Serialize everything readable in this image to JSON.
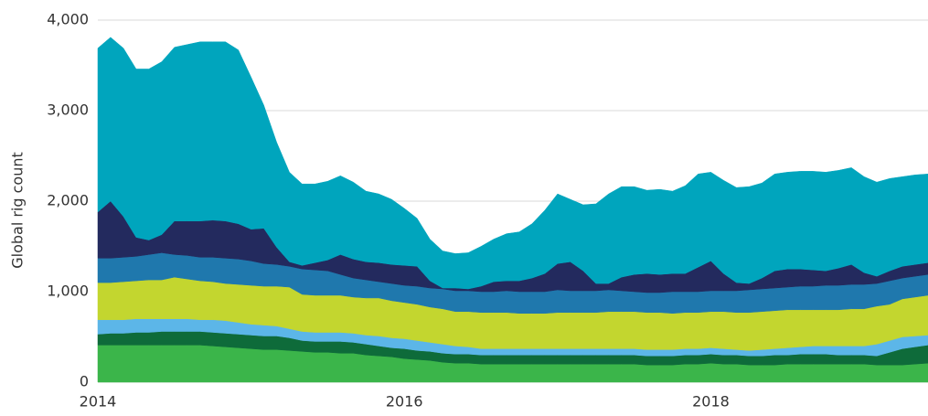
{
  "chart_data": {
    "type": "stacked_area",
    "y_label": "Global rig count",
    "x": [
      2014,
      2014.083,
      2014.167,
      2014.25,
      2014.333,
      2014.417,
      2014.5,
      2014.583,
      2014.667,
      2014.75,
      2014.833,
      2014.917,
      2015,
      2015.083,
      2015.167,
      2015.25,
      2015.333,
      2015.417,
      2015.5,
      2015.583,
      2015.667,
      2015.75,
      2015.833,
      2015.917,
      2016,
      2016.083,
      2016.167,
      2016.25,
      2016.333,
      2016.417,
      2016.5,
      2016.583,
      2016.667,
      2016.75,
      2016.833,
      2016.917,
      2017,
      2017.083,
      2017.167,
      2017.25,
      2017.333,
      2017.417,
      2017.5,
      2017.583,
      2017.667,
      2017.75,
      2017.833,
      2017.917,
      2018,
      2018.083,
      2018.167,
      2018.25,
      2018.333,
      2018.417,
      2018.5,
      2018.583,
      2018.667,
      2018.75,
      2018.833,
      2018.917,
      2019,
      2019.083,
      2019.167,
      2019.25,
      2019.333,
      2019.417
    ],
    "series": [
      {
        "color": "#3bb54a",
        "values": [
          410,
          410,
          410,
          410,
          410,
          410,
          410,
          410,
          410,
          400,
          390,
          380,
          370,
          360,
          360,
          350,
          340,
          330,
          330,
          320,
          320,
          300,
          290,
          280,
          260,
          250,
          240,
          220,
          210,
          210,
          200,
          200,
          200,
          200,
          200,
          200,
          200,
          200,
          200,
          200,
          200,
          200,
          200,
          190,
          190,
          190,
          200,
          200,
          210,
          200,
          200,
          190,
          190,
          190,
          200,
          200,
          200,
          200,
          200,
          200,
          200,
          190,
          190,
          190,
          200,
          210
        ]
      },
      {
        "color": "#0e6b3a",
        "values": [
          120,
          130,
          130,
          140,
          140,
          150,
          150,
          150,
          150,
          150,
          150,
          150,
          150,
          150,
          150,
          140,
          120,
          120,
          120,
          130,
          120,
          120,
          110,
          100,
          110,
          100,
          100,
          100,
          100,
          100,
          100,
          100,
          100,
          100,
          100,
          100,
          100,
          100,
          100,
          100,
          100,
          100,
          100,
          100,
          100,
          100,
          100,
          100,
          100,
          100,
          100,
          100,
          100,
          110,
          100,
          110,
          110,
          110,
          100,
          100,
          100,
          100,
          140,
          180,
          190,
          200
        ]
      },
      {
        "color": "#5cb6e8",
        "values": [
          160,
          150,
          150,
          150,
          150,
          140,
          140,
          140,
          130,
          140,
          140,
          130,
          120,
          120,
          110,
          100,
          100,
          100,
          100,
          100,
          100,
          100,
          110,
          110,
          110,
          110,
          100,
          100,
          90,
          80,
          70,
          70,
          70,
          70,
          70,
          70,
          70,
          70,
          70,
          70,
          70,
          70,
          70,
          70,
          70,
          70,
          70,
          70,
          70,
          70,
          60,
          60,
          70,
          70,
          80,
          80,
          90,
          90,
          100,
          100,
          100,
          130,
          130,
          130,
          120,
          110
        ]
      },
      {
        "color": "#c3d62f",
        "values": [
          410,
          410,
          420,
          420,
          430,
          430,
          460,
          440,
          430,
          420,
          410,
          420,
          430,
          430,
          440,
          460,
          410,
          410,
          410,
          410,
          400,
          410,
          420,
          410,
          400,
          400,
          390,
          390,
          380,
          390,
          400,
          400,
          400,
          390,
          390,
          390,
          400,
          400,
          400,
          400,
          410,
          410,
          410,
          410,
          410,
          400,
          400,
          400,
          400,
          410,
          410,
          420,
          420,
          420,
          420,
          410,
          400,
          400,
          400,
          410,
          410,
          420,
          400,
          420,
          430,
          440
        ]
      },
      {
        "color": "#1f78ad",
        "values": [
          270,
          270,
          270,
          270,
          280,
          300,
          250,
          260,
          260,
          270,
          280,
          280,
          270,
          250,
          240,
          230,
          280,
          280,
          270,
          230,
          210,
          200,
          180,
          190,
          190,
          200,
          210,
          220,
          230,
          230,
          230,
          230,
          240,
          240,
          240,
          240,
          250,
          240,
          240,
          240,
          240,
          230,
          220,
          220,
          220,
          240,
          230,
          230,
          230,
          230,
          240,
          250,
          250,
          250,
          250,
          260,
          260,
          270,
          270,
          270,
          270,
          250,
          260,
          230,
          230,
          230
        ]
      },
      {
        "color": "#232a5e",
        "values": [
          510,
          630,
          450,
          210,
          160,
          200,
          370,
          380,
          400,
          410,
          410,
          390,
          350,
          390,
          190,
          50,
          40,
          80,
          120,
          220,
          210,
          200,
          210,
          210,
          220,
          220,
          80,
          10,
          30,
          20,
          60,
          110,
          110,
          120,
          150,
          200,
          290,
          320,
          220,
          80,
          70,
          150,
          190,
          210,
          200,
          200,
          200,
          270,
          330,
          190,
          90,
          70,
          120,
          190,
          200,
          190,
          180,
          160,
          190,
          220,
          130,
          80,
          110,
          130,
          130,
          130
        ]
      },
      {
        "color": "#00a5bd",
        "values": [
          1810,
          1810,
          1860,
          1860,
          1890,
          1910,
          1920,
          1950,
          1980,
          1970,
          1980,
          1920,
          1680,
          1360,
          1160,
          990,
          900,
          870,
          870,
          870,
          850,
          780,
          760,
          720,
          630,
          530,
          460,
          410,
          380,
          400,
          440,
          470,
          520,
          540,
          600,
          700,
          770,
          690,
          730,
          880,
          990,
          1000,
          970,
          920,
          940,
          910,
          970,
          1030,
          980,
          1030,
          1050,
          1070,
          1050,
          1070,
          1070,
          1080,
          1090,
          1090,
          1080,
          1070,
          1060,
          1040,
          1020,
          990,
          990,
          980
        ]
      }
    ],
    "xlim": [
      2014,
      2019.417
    ],
    "xticks": [
      2014,
      2016,
      2018
    ],
    "ylim": [
      0,
      4000
    ],
    "yticks": [
      0,
      {
        "value": 1000,
        "label": "1,000"
      },
      {
        "value": 2000,
        "label": "2,000"
      },
      {
        "value": 3000,
        "label": "3,000"
      },
      {
        "value": 4000,
        "label": "4,000"
      }
    ],
    "grid": true
  }
}
